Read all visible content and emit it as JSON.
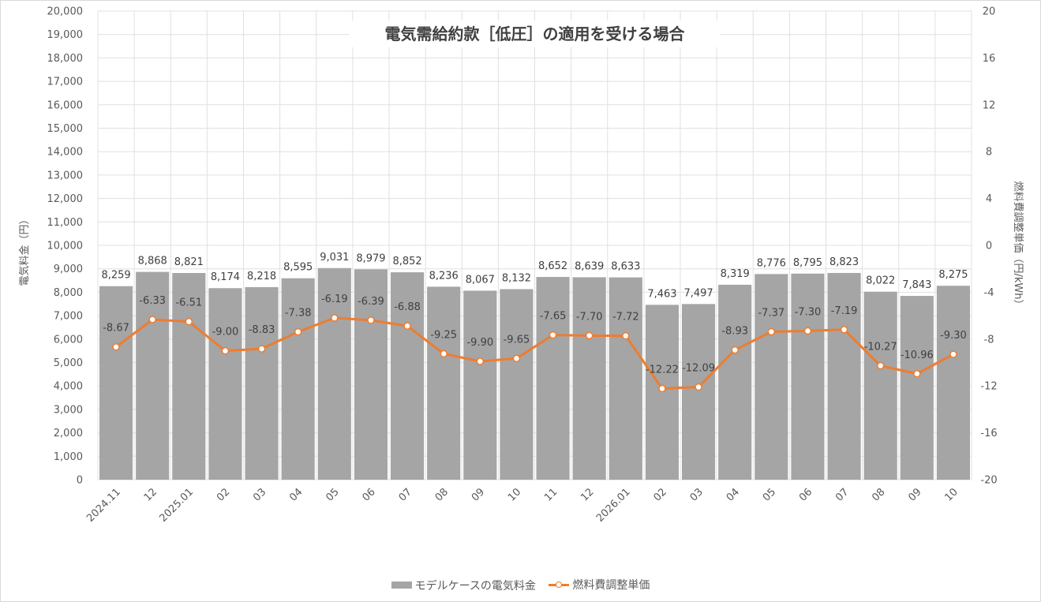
{
  "chart_data": {
    "type": "bar",
    "title": "電気需給約款［低圧］の適用を受ける場合",
    "categories": [
      "2024.11",
      "12",
      "2025.01",
      "02",
      "03",
      "04",
      "05",
      "06",
      "07",
      "08",
      "09",
      "10",
      "11",
      "12",
      "2026.01",
      "02",
      "03",
      "04",
      "05",
      "06",
      "07",
      "08",
      "09",
      "10"
    ],
    "series": [
      {
        "name": "モデルケースの電気料金",
        "type": "bar",
        "axis": "left",
        "color": "#a5a5a5",
        "values": [
          8259,
          8868,
          8821,
          8174,
          8218,
          8595,
          9031,
          8979,
          8852,
          8236,
          8067,
          8132,
          8652,
          8639,
          8633,
          7463,
          7497,
          8319,
          8776,
          8795,
          8823,
          8022,
          7843,
          8275
        ],
        "labels": [
          "8,259",
          "8,868",
          "8,821",
          "8,174",
          "8,218",
          "8,595",
          "9,031",
          "8,979",
          "8,852",
          "8,236",
          "8,067",
          "8,132",
          "8,652",
          "8,639",
          "8,633",
          "7,463",
          "7,497",
          "8,319",
          "8,776",
          "8,795",
          "8,823",
          "8,022",
          "7,843",
          "8,275"
        ]
      },
      {
        "name": "燃料費調整単価",
        "type": "line",
        "axis": "right",
        "color": "#ed7d31",
        "values": [
          -8.67,
          -6.33,
          -6.51,
          -9.0,
          -8.83,
          -7.38,
          -6.19,
          -6.39,
          -6.88,
          -9.25,
          -9.9,
          -9.65,
          -7.65,
          -7.7,
          -7.72,
          -12.22,
          -12.09,
          -8.93,
          -7.37,
          -7.3,
          -7.19,
          -10.27,
          -10.96,
          -9.3
        ],
        "labels": [
          "-8.67",
          "-6.33",
          "-6.51",
          "-9.00",
          "-8.83",
          "-7.38",
          "-6.19",
          "-6.39",
          "-6.88",
          "-9.25",
          "-9.90",
          "-9.65",
          "-7.65",
          "-7.70",
          "-7.72",
          "-12.22",
          "-12.09",
          "-8.93",
          "-7.37",
          "-7.30",
          "-7.19",
          "-10.27",
          "-10.96",
          "-9.30"
        ]
      }
    ],
    "y_left": {
      "label": "電気料金（円）",
      "ylim": [
        0,
        20000
      ],
      "ticks": [
        0,
        1000,
        2000,
        3000,
        4000,
        5000,
        6000,
        7000,
        8000,
        9000,
        10000,
        11000,
        12000,
        13000,
        14000,
        15000,
        16000,
        17000,
        18000,
        19000,
        20000
      ],
      "tick_labels": [
        "0",
        "1,000",
        "2,000",
        "3,000",
        "4,000",
        "5,000",
        "6,000",
        "7,000",
        "8,000",
        "9,000",
        "10,000",
        "11,000",
        "12,000",
        "13,000",
        "14,000",
        "15,000",
        "16,000",
        "17,000",
        "18,000",
        "19,000",
        "20,000"
      ]
    },
    "y_right": {
      "label": "燃料費調整単価（円/kWh）",
      "ylim": [
        -20,
        20
      ],
      "ticks": [
        -20,
        -16,
        -12,
        -8,
        -4,
        0,
        4,
        8,
        12,
        16,
        20
      ],
      "tick_labels": [
        "-20",
        "-16",
        "-12",
        "-8",
        "-4",
        "0",
        "4",
        "8",
        "12",
        "16",
        "20"
      ]
    },
    "grid": true,
    "legend_position": "bottom"
  },
  "legend": {
    "bar_label": "モデルケースの電気料金",
    "line_label": "燃料費調整単価"
  }
}
